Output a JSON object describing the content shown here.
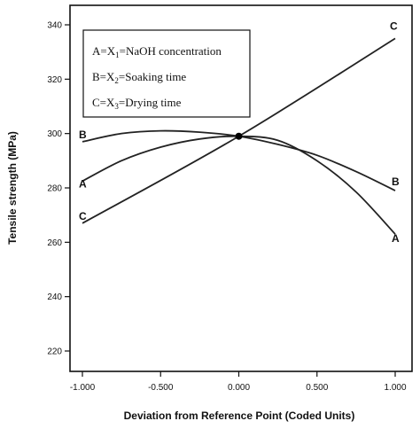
{
  "chart_data": {
    "type": "line",
    "xlabel": "Deviation from Reference Point (Coded Units)",
    "ylabel": "Tensile strength (MPa)",
    "xlim": [
      -1.0,
      1.0
    ],
    "ylim": [
      210,
      345
    ],
    "x_ticks": [
      "-1.000",
      "-0.500",
      "0.000",
      "0.500",
      "1.000"
    ],
    "y_ticks": [
      "220",
      "240",
      "260",
      "280",
      "300",
      "320",
      "340"
    ],
    "grid": false,
    "legend": {
      "placement": "top-left",
      "entries": [
        {
          "letter": "A",
          "eq": "=X",
          "sub": "1",
          "rest": "=NaOH concentration"
        },
        {
          "letter": "B",
          "eq": "=X",
          "sub": "2",
          "rest": "=Soaking time"
        },
        {
          "letter": "C",
          "eq": "=X",
          "sub": "3",
          "rest": "=Drying time"
        }
      ]
    },
    "reference_point": {
      "x": 0.0,
      "y": 299
    },
    "series": [
      {
        "name": "A",
        "x": [
          -1.0,
          -0.75,
          -0.5,
          -0.25,
          0.0,
          0.25,
          0.5,
          0.75,
          1.0
        ],
        "values": [
          282.5,
          290,
          295,
          298,
          299,
          297.5,
          290,
          278.5,
          263
        ]
      },
      {
        "name": "B",
        "x": [
          -1.0,
          -0.75,
          -0.5,
          -0.25,
          0.0,
          0.25,
          0.5,
          0.75,
          1.0
        ],
        "values": [
          297,
          300,
          301,
          300.5,
          299,
          296,
          292,
          286,
          279
        ]
      },
      {
        "name": "C",
        "x": [
          -1.0,
          0.0,
          1.0
        ],
        "values": [
          267,
          299,
          335
        ]
      }
    ]
  }
}
